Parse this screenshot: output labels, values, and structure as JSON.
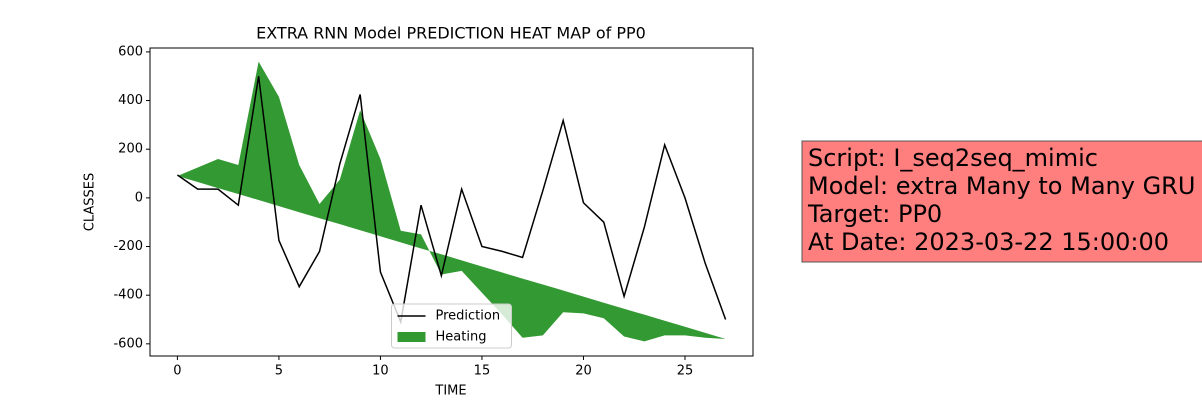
{
  "chart_data": {
    "type": "line",
    "title": "EXTRA RNN Model PREDICTION HEAT MAP of PP0",
    "x_label": "TIME",
    "y_label": "CLASSES",
    "x": [
      0,
      1,
      2,
      3,
      4,
      5,
      6,
      7,
      8,
      9,
      10,
      11,
      12,
      13,
      14,
      15,
      16,
      17,
      18,
      19,
      20,
      21,
      22,
      23,
      24,
      25,
      26,
      27
    ],
    "series": [
      {
        "name": "Prediction",
        "color": "#000000",
        "kind": "line",
        "values": [
          94,
          36,
          36,
          -30,
          500,
          -175,
          -365,
          -220,
          140,
          425,
          -305,
          -510,
          -30,
          -320,
          36,
          -200,
          -220,
          -245,
          30,
          318,
          -20,
          -100,
          -405,
          -120,
          218,
          0,
          -270,
          -500
        ]
      },
      {
        "name": "Heating",
        "color": "#008000",
        "kind": "fill_between",
        "values": [
          90,
          125,
          160,
          135,
          560,
          415,
          135,
          -25,
          75,
          360,
          160,
          -135,
          -150,
          -315,
          -300,
          -390,
          -480,
          -575,
          -565,
          -470,
          -475,
          -495,
          -570,
          -590,
          -565,
          -565,
          -575,
          -580
        ],
        "baseline": [
          90,
          65,
          40,
          16,
          -9,
          -34,
          -59,
          -84,
          -108,
          -133,
          -158,
          -183,
          -208,
          -232,
          -257,
          -282,
          -307,
          -332,
          -356,
          -381,
          -406,
          -431,
          -456,
          -480,
          -505,
          -530,
          -555,
          -580
        ]
      }
    ],
    "xlim": [
      -1.35,
      28.35
    ],
    "ylim": [
      -650,
      616
    ],
    "xticks": [
      0,
      5,
      10,
      15,
      20,
      25
    ],
    "yticks": [
      -600,
      -400,
      -200,
      0,
      200,
      400,
      600
    ],
    "legend": "lower center",
    "annotation": [
      "Script: I_seq2seq_mimic",
      "Model: extra Many to Many GRU",
      "Target: PP0",
      "At Date: 2023-03-22 15:00:00"
    ]
  }
}
